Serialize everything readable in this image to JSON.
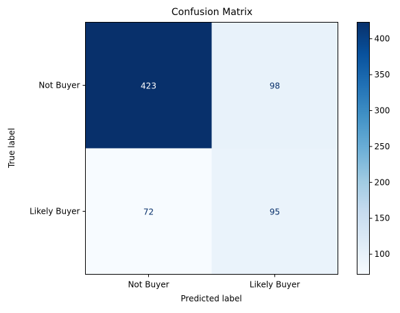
{
  "chart_data": {
    "type": "heatmap",
    "title": "Confusion Matrix",
    "xlabel": "Predicted label",
    "ylabel": "True label",
    "x_categories": [
      "Not Buyer",
      "Likely Buyer"
    ],
    "y_categories": [
      "Not Buyer",
      "Likely Buyer"
    ],
    "values": [
      [
        423,
        98
      ],
      [
        72,
        95
      ]
    ],
    "colormap": "Blues",
    "colorbar": {
      "range": [
        72,
        423
      ],
      "ticks": [
        100,
        150,
        200,
        250,
        300,
        350,
        400
      ]
    },
    "grid": false
  },
  "colors": {
    "low_text": "#08306b",
    "high_text": "#ffffff",
    "blues_stops": [
      "#f7fbff",
      "#deebf7",
      "#c6dbef",
      "#9ecae1",
      "#6baed6",
      "#4292c6",
      "#2171b5",
      "#08519c",
      "#08306b"
    ]
  }
}
